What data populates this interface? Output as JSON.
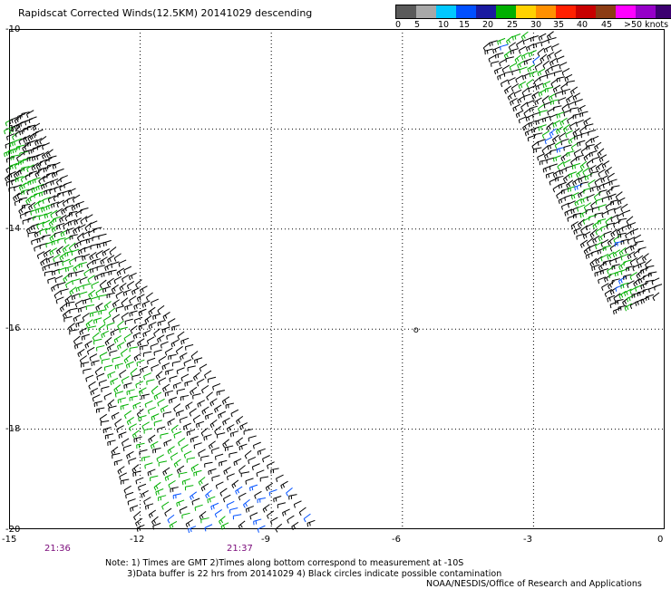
{
  "title": "Rapidscat Corrected Winds(12.5KM) 20141029 descending",
  "legend": {
    "colors": [
      "#5a5a5a",
      "#a8a8a8",
      "#00c8ff",
      "#0050ff",
      "#1a1aa0",
      "#00b000",
      "#ffd200",
      "#ff9000",
      "#ff2000",
      "#c80000",
      "#8c3c14",
      "#ff00ff",
      "#9600c8",
      "#3c0070"
    ],
    "labels": [
      "0",
      "5",
      "10",
      "15",
      "20",
      "25",
      "30",
      "35",
      "40",
      "45",
      ">50 knots"
    ]
  },
  "axes": {
    "y_labels": [
      "-10",
      "-12",
      "-14",
      "-16",
      "-18",
      "-20"
    ],
    "x_labels": [
      "-15",
      "-12",
      "-9",
      "-6",
      "-3",
      "0"
    ]
  },
  "times": [
    "21:36",
    "21:37"
  ],
  "circle_marker": "o",
  "note": "Note: 1) Times are GMT 2)Times along bottom correspond to measurement at -10S\n        3)Data buffer is 22 hrs from 20141029 4) Black circles indicate possible contamination",
  "credit": "NOAA/NESDIS/Office of Research and Applications",
  "map": {
    "lon_range": [
      -15,
      0
    ],
    "lat_range": [
      -20,
      -10
    ],
    "grid": true,
    "swaths": [
      {
        "name": "west swath",
        "lat_top": -11.8,
        "lat_bottom": -20,
        "lon_top_left": -15,
        "lon_top_right": -14.5,
        "lon_bottom_left": -11.8,
        "lon_bottom_right": -8.0
      },
      {
        "name": "east swath",
        "lat_top": -10.1,
        "lat_bottom": -15.4,
        "lon_top_left": -4.0,
        "lon_top_right": -2.6,
        "lon_bottom_left": -1.0,
        "lon_bottom_right": 0
      }
    ],
    "wind_colors": {
      "light": "#000000",
      "moderate": "#00b000",
      "strong": "#0050ff",
      "stronger": "#ffd200"
    }
  }
}
